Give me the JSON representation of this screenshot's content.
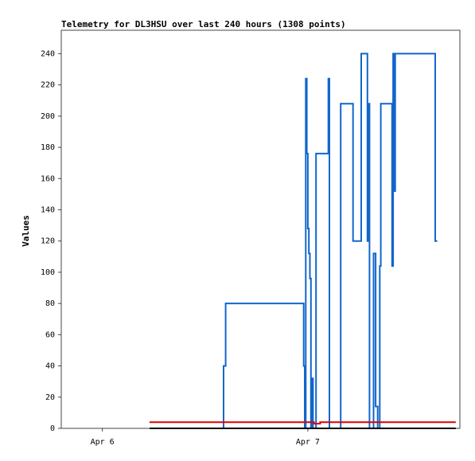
{
  "chart_data": {
    "type": "line",
    "title": "Telemetry for DL3HSU over last 240 hours (1308 points)",
    "xlabel": "",
    "ylabel": "Values",
    "ylim": [
      0,
      255
    ],
    "yticks": [
      0,
      20,
      40,
      60,
      80,
      100,
      120,
      140,
      160,
      180,
      200,
      220,
      240
    ],
    "xlim": [
      -0.2,
      1.74
    ],
    "xticks": [
      {
        "label": "Apr 6",
        "value": 0
      },
      {
        "label": "Apr 7",
        "value": 1
      }
    ],
    "grid": false,
    "series": [
      {
        "color": "#1166cc",
        "x": [
          0.59,
          0.59,
          0.6,
          0.6,
          0.98,
          0.98,
          0.985,
          0.985,
          0.99,
          0.99,
          0.995,
          0.995,
          1.0,
          1.0,
          1.005,
          1.005,
          1.01,
          1.01,
          1.015,
          1.015,
          1.02,
          1.02,
          1.025,
          1.025,
          1.04,
          1.04,
          1.05,
          1.05,
          1.1,
          1.1,
          1.105,
          1.105,
          1.11,
          1.11,
          1.16,
          1.16,
          1.22,
          1.22,
          1.26,
          1.26,
          1.265,
          1.265,
          1.29,
          1.29,
          1.295,
          1.295,
          1.3,
          1.3,
          1.32,
          1.32,
          1.33,
          1.33,
          1.34,
          1.34,
          1.35,
          1.35,
          1.355,
          1.355,
          1.36,
          1.36,
          1.365,
          1.365,
          1.41,
          1.41,
          1.415,
          1.415,
          1.42,
          1.42,
          1.425,
          1.425,
          1.43,
          1.43,
          1.435,
          1.435,
          1.44,
          1.44,
          1.45,
          1.45,
          1.62,
          1.62,
          1.63
        ],
        "y": [
          0,
          40,
          40,
          80,
          80,
          40,
          40,
          0,
          0,
          224,
          224,
          176,
          176,
          128,
          128,
          112,
          112,
          96,
          96,
          0,
          0,
          32,
          32,
          0,
          0,
          176,
          176,
          176,
          176,
          224,
          224,
          0,
          0,
          0,
          0,
          208,
          208,
          120,
          120,
          240,
          240,
          240,
          240,
          120,
          120,
          208,
          208,
          0,
          0,
          112,
          112,
          14,
          14,
          0,
          0,
          104,
          104,
          208,
          208,
          208,
          208,
          208,
          208,
          104,
          104,
          240,
          240,
          152,
          152,
          240,
          240,
          240,
          240,
          240,
          240,
          240,
          240,
          240,
          240,
          120,
          120
        ]
      },
      {
        "color": "#dd0000",
        "x": [
          0.23,
          1.03,
          1.03,
          1.06,
          1.06,
          1.72
        ],
        "y": [
          4,
          4,
          3,
          3,
          4,
          4
        ]
      },
      {
        "color": "#000000",
        "x": [
          0.23,
          1.72
        ],
        "y": [
          0,
          0
        ]
      }
    ]
  }
}
